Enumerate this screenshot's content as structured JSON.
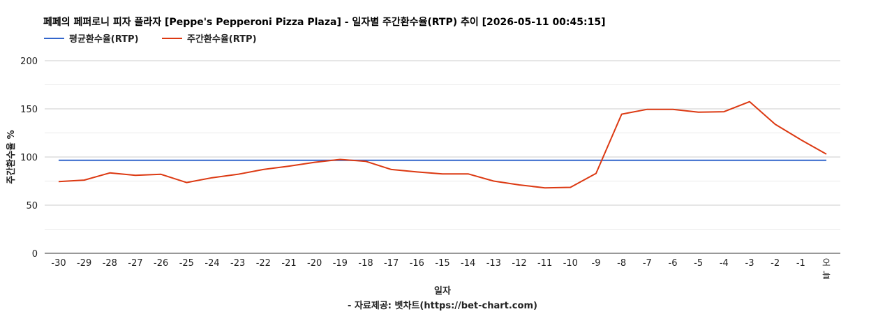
{
  "chart_data": {
    "type": "line",
    "title": "페페의 페퍼로니 피자 플라자 [Peppe's Pepperoni Pizza Plaza] - 일자별 주간환수율(RTP) 추이 [2026-05-11 00:45:15]",
    "xlabel": "일자",
    "ylabel": "주간환수율 %",
    "source": "- 자료제공: 벳차트(https://bet-chart.com)",
    "legend_position": "top-left",
    "grid": true,
    "ylim": [
      0,
      200
    ],
    "yticks": [
      0,
      50,
      100,
      150,
      200
    ],
    "categories": [
      "-30",
      "-29",
      "-28",
      "-27",
      "-26",
      "-25",
      "-24",
      "-23",
      "-22",
      "-21",
      "-20",
      "-19",
      "-18",
      "-17",
      "-16",
      "-15",
      "-14",
      "-13",
      "-12",
      "-11",
      "-10",
      "-9",
      "-8",
      "-7",
      "-6",
      "-5",
      "-4",
      "-3",
      "-2",
      "-1",
      "오늘"
    ],
    "series": [
      {
        "name": "평균환수율(RTP)",
        "color": "#3366cc",
        "values": [
          96.5,
          96.5,
          96.5,
          96.5,
          96.5,
          96.5,
          96.5,
          96.5,
          96.5,
          96.5,
          96.5,
          96.5,
          96.5,
          96.5,
          96.5,
          96.5,
          96.5,
          96.5,
          96.5,
          96.5,
          96.5,
          96.5,
          96.5,
          96.5,
          96.5,
          96.5,
          96.5,
          96.5,
          96.5,
          96.5,
          96.5
        ]
      },
      {
        "name": "주간환수율(RTP)",
        "color": "#dc3912",
        "values": [
          74.5,
          76,
          83.5,
          81,
          82,
          73.5,
          78.5,
          82,
          87,
          90.5,
          94.5,
          97.5,
          95.5,
          87,
          84.5,
          82.5,
          82.5,
          75,
          71,
          68,
          68.5,
          83,
          144.5,
          149.5,
          149.5,
          146.5,
          147,
          157.5,
          134,
          118,
          103
        ]
      }
    ]
  }
}
